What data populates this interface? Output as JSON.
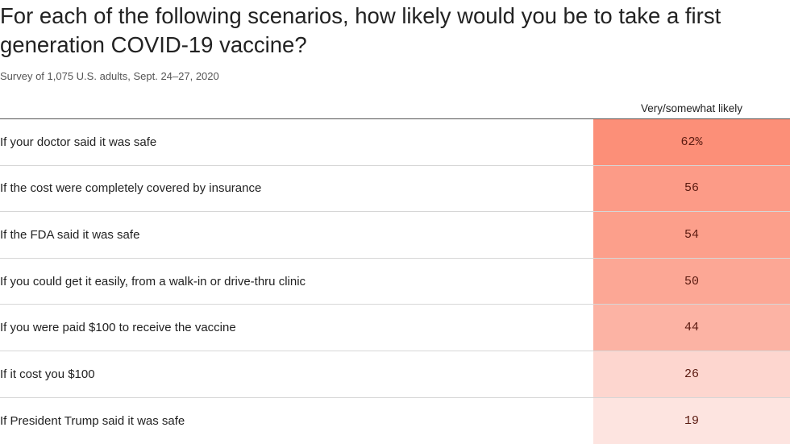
{
  "header": {
    "title": "For each of the following scenarios, how likely would you be to take a first\ngeneration  COVID-19 vaccine?",
    "subtitle": "Survey of 1,075 U.S. adults, Sept. 24–27, 2020"
  },
  "chart_data": {
    "type": "table",
    "column_header": "Very/somewhat likely",
    "color_scale": {
      "low": "#fde4e0",
      "high": "#fc8f78"
    },
    "rows": [
      {
        "label": "If your doctor said it was safe",
        "value": 62,
        "display": "62%"
      },
      {
        "label": "If the cost were completely covered by insurance",
        "value": 56,
        "display": "56"
      },
      {
        "label": "If the FDA said it was safe",
        "value": 54,
        "display": "54"
      },
      {
        "label": "If you could get it easily, from a walk-in or drive-thru clinic",
        "value": 50,
        "display": "50"
      },
      {
        "label": "If you were paid $100 to receive the vaccine",
        "value": 44,
        "display": "44"
      },
      {
        "label": "If it cost you $100",
        "value": 26,
        "display": "26"
      },
      {
        "label": "If President Trump said it was safe",
        "value": 19,
        "display": "19"
      }
    ]
  }
}
